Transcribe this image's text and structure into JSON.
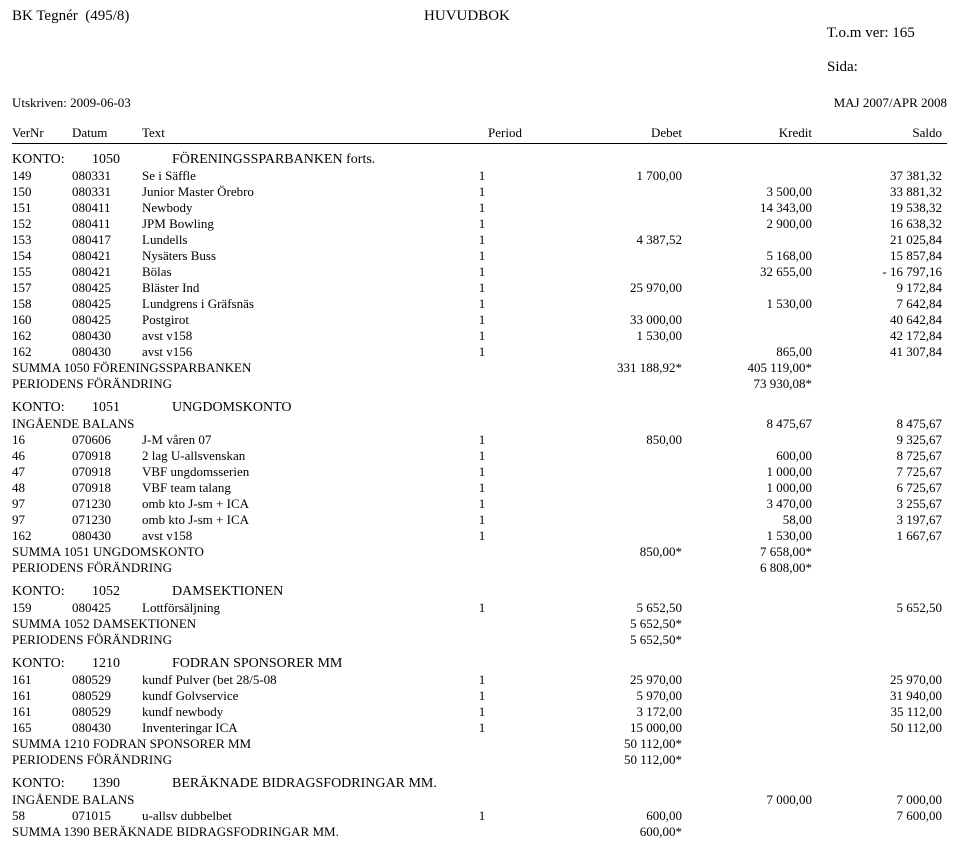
{
  "header": {
    "left1": "BK Tegnér  (495/8)",
    "center1": "HUVUDBOK",
    "right1a": "T.o.m ver: 165",
    "right1b": "Sida:",
    "left2": "Utskriven: 2009-06-03",
    "right2": "MAJ 2007/APR 2008"
  },
  "cols": {
    "c1": "VerNr",
    "c2": "Datum",
    "c3": "Text",
    "c4": "Period",
    "c5": "Debet",
    "c6": "Kredit",
    "c7": "Saldo"
  },
  "sections": [
    {
      "konto_label": "KONTO:",
      "konto_num": "1050",
      "konto_name": "FÖRENINGSSPARBANKEN forts.",
      "rows": [
        {
          "v": "149",
          "d": "080331",
          "t": "Se i Säffle",
          "p": "1",
          "deb": "1 700,00",
          "kre": "",
          "sal": "37 381,32"
        },
        {
          "v": "150",
          "d": "080331",
          "t": "Junior Master Örebro",
          "p": "1",
          "deb": "",
          "kre": "3 500,00",
          "sal": "33 881,32"
        },
        {
          "v": "151",
          "d": "080411",
          "t": "Newbody",
          "p": "1",
          "deb": "",
          "kre": "14 343,00",
          "sal": "19 538,32"
        },
        {
          "v": "152",
          "d": "080411",
          "t": "JPM Bowling",
          "p": "1",
          "deb": "",
          "kre": "2 900,00",
          "sal": "16 638,32"
        },
        {
          "v": "153",
          "d": "080417",
          "t": "Lundells",
          "p": "1",
          "deb": "4 387,52",
          "kre": "",
          "sal": "21 025,84"
        },
        {
          "v": "154",
          "d": "080421",
          "t": "Nysäters Buss",
          "p": "1",
          "deb": "",
          "kre": "5 168,00",
          "sal": "15 857,84"
        },
        {
          "v": "155",
          "d": "080421",
          "t": "Bölas",
          "p": "1",
          "deb": "",
          "kre": "32 655,00",
          "sal": "- 16 797,16"
        },
        {
          "v": "157",
          "d": "080425",
          "t": "Bläster Ind",
          "p": "1",
          "deb": "25 970,00",
          "kre": "",
          "sal": "9 172,84"
        },
        {
          "v": "158",
          "d": "080425",
          "t": "Lundgrens i Gräfsnäs",
          "p": "1",
          "deb": "",
          "kre": "1 530,00",
          "sal": "7 642,84"
        },
        {
          "v": "160",
          "d": "080425",
          "t": "Postgirot",
          "p": "1",
          "deb": "33 000,00",
          "kre": "",
          "sal": "40 642,84"
        },
        {
          "v": "162",
          "d": "080430",
          "t": "avst v158",
          "p": "1",
          "deb": "1 530,00",
          "kre": "",
          "sal": "42 172,84"
        },
        {
          "v": "162",
          "d": "080430",
          "t": "avst v156",
          "p": "1",
          "deb": "",
          "kre": "865,00",
          "sal": "41 307,84"
        }
      ],
      "summa_label": "SUMMA 1050 FÖRENINGSSPARBANKEN",
      "summa_deb": "331 188,92*",
      "summa_kre": "405 119,00*",
      "period_label": "PERIODENS FÖRÄNDRING",
      "period_val": "73 930,08*",
      "period_col": "kre"
    },
    {
      "konto_label": "KONTO:",
      "konto_num": "1051",
      "konto_name": "UNGDOMSKONTO",
      "ingaende_label": "INGÅENDE BALANS",
      "ingaende_kre": "8 475,67",
      "ingaende_sal": "8 475,67",
      "rows": [
        {
          "v": "16",
          "d": "070606",
          "t": "J-M våren 07",
          "p": "1",
          "deb": "850,00",
          "kre": "",
          "sal": "9 325,67"
        },
        {
          "v": "46",
          "d": "070918",
          "t": "2 lag U-allsvenskan",
          "p": "1",
          "deb": "",
          "kre": "600,00",
          "sal": "8 725,67"
        },
        {
          "v": "47",
          "d": "070918",
          "t": "VBF ungdomsserien",
          "p": "1",
          "deb": "",
          "kre": "1 000,00",
          "sal": "7 725,67"
        },
        {
          "v": "48",
          "d": "070918",
          "t": "VBF team talang",
          "p": "1",
          "deb": "",
          "kre": "1 000,00",
          "sal": "6 725,67"
        },
        {
          "v": "97",
          "d": "071230",
          "t": "omb kto  J-sm + ICA",
          "p": "1",
          "deb": "",
          "kre": "3 470,00",
          "sal": "3 255,67"
        },
        {
          "v": "97",
          "d": "071230",
          "t": "omb kto  J-sm + ICA",
          "p": "1",
          "deb": "",
          "kre": "58,00",
          "sal": "3 197,67"
        },
        {
          "v": "162",
          "d": "080430",
          "t": "avst v158",
          "p": "1",
          "deb": "",
          "kre": "1 530,00",
          "sal": "1 667,67"
        }
      ],
      "summa_label": "SUMMA 1051 UNGDOMSKONTO",
      "summa_deb": "850,00*",
      "summa_kre": "7 658,00*",
      "period_label": "PERIODENS FÖRÄNDRING",
      "period_val": "6 808,00*",
      "period_col": "kre"
    },
    {
      "konto_label": "KONTO:",
      "konto_num": "1052",
      "konto_name": "DAMSEKTIONEN",
      "rows": [
        {
          "v": "159",
          "d": "080425",
          "t": "Lottförsäljning",
          "p": "1",
          "deb": "5 652,50",
          "kre": "",
          "sal": "5 652,50"
        }
      ],
      "summa_label": "SUMMA 1052 DAMSEKTIONEN",
      "summa_deb": "5 652,50*",
      "summa_kre": "",
      "period_label": "PERIODENS FÖRÄNDRING",
      "period_val": "5 652,50*",
      "period_col": "deb"
    },
    {
      "konto_label": "KONTO:",
      "konto_num": "1210",
      "konto_name": "FODRAN SPONSORER MM",
      "rows": [
        {
          "v": "161",
          "d": "080529",
          "t": "kundf Pulver (bet 28/5-08",
          "p": "1",
          "deb": "25 970,00",
          "kre": "",
          "sal": "25 970,00"
        },
        {
          "v": "161",
          "d": "080529",
          "t": "kundf Golvservice",
          "p": "1",
          "deb": "5 970,00",
          "kre": "",
          "sal": "31 940,00"
        },
        {
          "v": "161",
          "d": "080529",
          "t": "kundf newbody",
          "p": "1",
          "deb": "3 172,00",
          "kre": "",
          "sal": "35 112,00"
        },
        {
          "v": "165",
          "d": "080430",
          "t": "Inventeringar ICA",
          "p": "1",
          "deb": "15 000,00",
          "kre": "",
          "sal": "50 112,00"
        }
      ],
      "summa_label": "SUMMA 1210 FODRAN SPONSORER MM",
      "summa_deb": "50 112,00*",
      "summa_kre": "",
      "period_label": "PERIODENS FÖRÄNDRING",
      "period_val": "50 112,00*",
      "period_col": "deb"
    },
    {
      "konto_label": "KONTO:",
      "konto_num": "1390",
      "konto_name": "BERÄKNADE BIDRAGSFODRINGAR MM.",
      "ingaende_label": "INGÅENDE BALANS",
      "ingaende_kre": "7 000,00",
      "ingaende_sal": "7 000,00",
      "rows": [
        {
          "v": "58",
          "d": "071015",
          "t": "u-allsv dubbelbet",
          "p": "1",
          "deb": "600,00",
          "kre": "",
          "sal": "7 600,00"
        }
      ],
      "summa_label": "SUMMA 1390 BERÄKNADE BIDRAGSFODRINGAR MM.",
      "summa_deb": "600,00*",
      "summa_kre": ""
    }
  ]
}
